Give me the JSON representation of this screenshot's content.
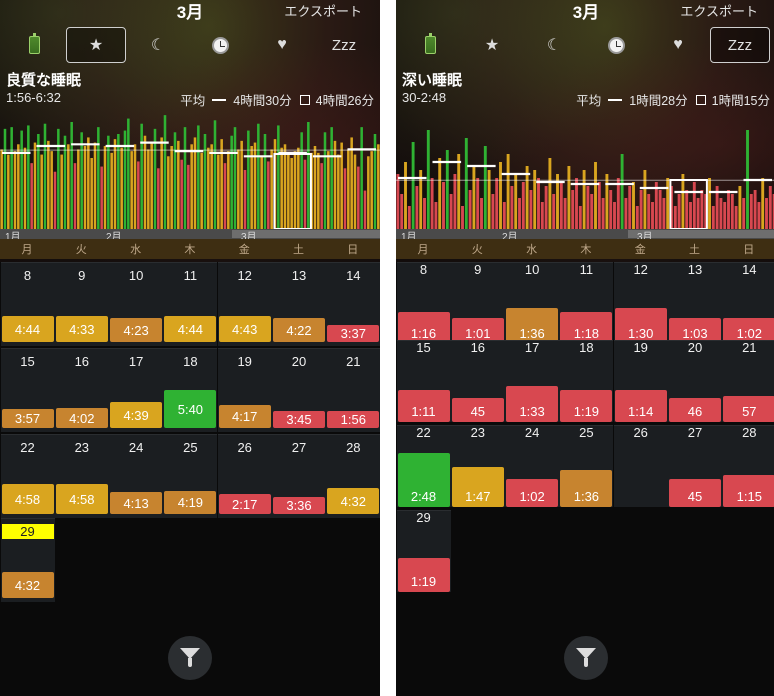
{
  "colors": {
    "green": "#2fb233",
    "yellow": "#d9a51f",
    "orange": "#c7842f",
    "red": "#d84850",
    "today": "#ffff00",
    "background": "#0a0a0a"
  },
  "panels": [
    {
      "id": "left",
      "header": {
        "month": "3月",
        "export_label": "エクスポート",
        "active_tab": 1
      },
      "tabs": [
        {
          "name": "battery",
          "glyph": ""
        },
        {
          "name": "star",
          "glyph": "★"
        },
        {
          "name": "moon",
          "glyph": "☾"
        },
        {
          "name": "clock",
          "glyph": ""
        },
        {
          "name": "heart",
          "glyph": "♥"
        },
        {
          "name": "zzz",
          "glyph": "Zzz"
        }
      ],
      "stats": {
        "title": "良質な睡眠",
        "range": "1:56-6:32",
        "avg_label": "平均",
        "avg_value": "4時間30分",
        "selected_value": "4時間26分"
      },
      "chart_data": {
        "type": "bar",
        "ylim": [
          0,
          7
        ],
        "values": [
          4.7,
          5.9,
          4.4,
          6.0,
          4.6,
          5.0,
          5.8,
          4.8,
          6.1,
          3.9,
          5.1,
          5.6,
          4.4,
          6.2,
          5.2,
          4.6,
          3.4,
          5.9,
          4.4,
          5.5,
          5.0,
          6.3,
          3.9,
          4.7,
          5.7,
          4.9,
          5.4,
          4.2,
          5.1,
          6.0,
          3.7,
          4.9,
          5.5,
          4.5,
          5.3,
          5.6,
          4.8,
          5.8,
          6.5,
          4.6,
          5.0,
          4.0,
          6.2,
          5.5,
          4.7,
          5.1,
          5.9,
          3.6,
          5.4,
          6.7,
          4.3,
          4.9,
          5.7,
          5.2,
          4.1,
          6.0,
          3.8,
          5.0,
          5.4,
          6.1,
          4.5,
          5.6,
          4.8,
          5.0,
          6.4,
          4.4,
          5.3,
          3.9,
          4.6,
          5.5,
          6.0,
          4.7,
          5.2,
          3.5,
          5.8,
          4.9,
          5.1,
          6.2,
          4.3,
          5.6,
          4.0,
          4.7,
          5.3,
          6.1,
          4.8,
          5.0,
          4.4,
          4.2,
          4.6,
          4.8,
          5.7,
          4.1,
          6.3,
          4.5,
          4.9,
          4.5,
          3.9,
          5.7,
          4.6,
          6.0,
          5.2,
          4.4,
          5.1,
          3.6,
          4.7,
          5.4,
          4.4,
          3.7,
          6.0,
          2.3,
          4.3,
          4.6,
          5.6,
          5.0
        ],
        "statuses": [
          "y",
          "g",
          "y",
          "g",
          "y",
          "y",
          "g",
          "y",
          "g",
          "r",
          "y",
          "g",
          "y",
          "g",
          "y",
          "y",
          "r",
          "g",
          "y",
          "g",
          "y",
          "g",
          "r",
          "y",
          "g",
          "y",
          "y",
          "y",
          "y",
          "g",
          "r",
          "y",
          "g",
          "y",
          "y",
          "g",
          "y",
          "g",
          "g",
          "y",
          "y",
          "r",
          "g",
          "y",
          "y",
          "y",
          "g",
          "r",
          "y",
          "g",
          "y",
          "y",
          "g",
          "y",
          "r",
          "g",
          "r",
          "y",
          "y",
          "g",
          "y",
          "g",
          "y",
          "y",
          "g",
          "y",
          "y",
          "r",
          "y",
          "g",
          "g",
          "y",
          "y",
          "r",
          "g",
          "y",
          "y",
          "g",
          "y",
          "g",
          "r",
          "y",
          "y",
          "g",
          "y",
          "y",
          "y",
          "y",
          "y",
          "y",
          "g",
          "r",
          "g",
          "y",
          "y",
          "y",
          "r",
          "g",
          "y",
          "g",
          "y",
          "y",
          "y",
          "r",
          "y",
          "y",
          "y",
          "r",
          "g",
          "r",
          "y",
          "y",
          "g",
          "y"
        ],
        "weekly_avg": [
          4.5,
          4.9,
          5.0,
          4.9,
          5.1,
          4.6,
          4.5,
          4.3,
          4.5,
          4.3,
          4.7
        ]
      },
      "timeline": {
        "labels": [
          "1月",
          "2月",
          "3月"
        ]
      },
      "weekdays": [
        "月",
        "火",
        "水",
        "木",
        "金",
        "土",
        "日"
      ],
      "weeks": [
        [
          {
            "date": "8",
            "v": "4:44",
            "c": "y",
            "h": 26
          },
          {
            "date": "9",
            "v": "4:33",
            "c": "y",
            "h": 26
          },
          {
            "date": "10",
            "v": "4:23",
            "c": "o",
            "h": 24
          },
          {
            "date": "11",
            "v": "4:44",
            "c": "y",
            "h": 26
          },
          {
            "date": "12",
            "v": "4:43",
            "c": "y",
            "h": 26
          },
          {
            "date": "13",
            "v": "4:22",
            "c": "o",
            "h": 24
          },
          {
            "date": "14",
            "v": "3:37",
            "c": "r",
            "h": 17
          }
        ],
        [
          {
            "date": "15",
            "v": "3:57",
            "c": "o",
            "h": 19
          },
          {
            "date": "16",
            "v": "4:02",
            "c": "o",
            "h": 20
          },
          {
            "date": "17",
            "v": "4:39",
            "c": "y",
            "h": 26
          },
          {
            "date": "18",
            "v": "5:40",
            "c": "g",
            "h": 38
          },
          {
            "date": "19",
            "v": "4:17",
            "c": "o",
            "h": 23
          },
          {
            "date": "20",
            "v": "3:45",
            "c": "r",
            "h": 17
          },
          {
            "date": "21",
            "v": "1:56",
            "c": "r",
            "h": 17
          }
        ],
        [
          {
            "date": "22",
            "v": "4:58",
            "c": "y",
            "h": 30
          },
          {
            "date": "23",
            "v": "4:58",
            "c": "y",
            "h": 30
          },
          {
            "date": "24",
            "v": "4:13",
            "c": "o",
            "h": 22
          },
          {
            "date": "25",
            "v": "4:19",
            "c": "o",
            "h": 23
          },
          {
            "date": "26",
            "v": "2:17",
            "c": "r",
            "h": 20
          },
          {
            "date": "27",
            "v": "3:36",
            "c": "r",
            "h": 17
          },
          {
            "date": "28",
            "v": "4:32",
            "c": "y",
            "h": 26
          }
        ],
        [
          {
            "date": "29",
            "v": "4:32",
            "c": "o",
            "h": 26,
            "today": true
          }
        ]
      ]
    },
    {
      "id": "right",
      "header": {
        "month": "3月",
        "export_label": "エクスポート",
        "active_tab": 5
      },
      "tabs": [
        {
          "name": "battery",
          "glyph": ""
        },
        {
          "name": "star",
          "glyph": "★"
        },
        {
          "name": "moon",
          "glyph": "☾"
        },
        {
          "name": "clock",
          "glyph": ""
        },
        {
          "name": "heart",
          "glyph": "♥"
        },
        {
          "name": "zzz",
          "glyph": "Zzz"
        }
      ],
      "stats": {
        "title": "深い睡眠",
        "range": "30-2:48",
        "avg_label": "平均",
        "avg_value": "1時間28分",
        "selected_value": "1時間15分"
      },
      "chart_data": {
        "type": "bar",
        "ylim": [
          0,
          3
        ],
        "values": [
          1.4,
          0.9,
          1.7,
          0.6,
          2.2,
          1.1,
          1.5,
          0.8,
          2.5,
          1.3,
          0.7,
          1.8,
          1.2,
          2.0,
          0.9,
          1.4,
          1.9,
          0.6,
          2.3,
          1.0,
          1.6,
          1.3,
          0.8,
          2.1,
          1.5,
          0.9,
          1.3,
          1.7,
          0.7,
          1.9,
          1.1,
          1.4,
          0.8,
          1.2,
          1.6,
          1.0,
          1.5,
          1.3,
          0.7,
          1.1,
          1.8,
          0.9,
          1.4,
          1.2,
          0.8,
          1.6,
          1.0,
          1.3,
          0.6,
          1.5,
          1.1,
          0.9,
          1.7,
          1.2,
          0.8,
          1.4,
          1.0,
          0.7,
          1.3,
          1.9,
          0.8,
          1.1,
          1.2,
          0.6,
          1.0,
          1.5,
          0.9,
          0.7,
          1.2,
          1.0,
          0.8,
          1.3,
          1.1,
          0.6,
          0.9,
          1.4,
          1.0,
          0.7,
          1.2,
          0.8,
          1.0,
          0.9,
          1.3,
          0.6,
          1.1,
          0.8,
          0.7,
          1.0,
          0.9,
          0.6,
          1.1,
          0.8,
          2.5,
          0.9,
          1.0,
          0.7,
          1.3,
          0.8,
          1.1,
          0.9
        ],
        "statuses": [
          "r",
          "r",
          "y",
          "r",
          "g",
          "r",
          "y",
          "r",
          "g",
          "r",
          "r",
          "y",
          "r",
          "g",
          "r",
          "r",
          "y",
          "r",
          "g",
          "r",
          "y",
          "r",
          "r",
          "g",
          "y",
          "r",
          "r",
          "y",
          "r",
          "y",
          "r",
          "y",
          "r",
          "r",
          "y",
          "r",
          "y",
          "r",
          "r",
          "r",
          "y",
          "r",
          "y",
          "r",
          "r",
          "y",
          "r",
          "r",
          "r",
          "y",
          "r",
          "r",
          "y",
          "r",
          "r",
          "y",
          "r",
          "r",
          "r",
          "g",
          "r",
          "r",
          "y",
          "r",
          "r",
          "y",
          "r",
          "r",
          "r",
          "r",
          "r",
          "y",
          "r",
          "r",
          "r",
          "y",
          "r",
          "r",
          "r",
          "r",
          "r",
          "r",
          "y",
          "r",
          "r",
          "r",
          "r",
          "r",
          "r",
          "r",
          "y",
          "r",
          "g",
          "r",
          "r",
          "r",
          "y",
          "r",
          "r",
          "r"
        ],
        "weekly_avg": [
          1.3,
          1.7,
          1.6,
          1.4,
          1.2,
          1.15,
          1.15,
          1.05,
          0.95,
          0.95,
          1.25
        ]
      },
      "timeline": {
        "labels": [
          "1月",
          "2月",
          "3月"
        ]
      },
      "weekdays": [
        "月",
        "火",
        "水",
        "木",
        "金",
        "土",
        "日"
      ],
      "weeks": [
        [
          {
            "date": "8",
            "v": "1:16",
            "c": "r",
            "h": 32
          },
          {
            "date": "9",
            "v": "1:01",
            "c": "r",
            "h": 26
          },
          {
            "date": "10",
            "v": "1:36",
            "c": "o",
            "h": 36
          },
          {
            "date": "11",
            "v": "1:18",
            "c": "r",
            "h": 32
          },
          {
            "date": "12",
            "v": "1:30",
            "c": "r",
            "h": 36
          },
          {
            "date": "13",
            "v": "1:03",
            "c": "r",
            "h": 26
          },
          {
            "date": "14",
            "v": "1:02",
            "c": "r",
            "h": 26
          }
        ],
        [
          {
            "date": "15",
            "v": "1:11",
            "c": "r",
            "h": 32
          },
          {
            "date": "16",
            "v": "45",
            "c": "r",
            "h": 24
          },
          {
            "date": "17",
            "v": "1:33",
            "c": "r",
            "h": 36
          },
          {
            "date": "18",
            "v": "1:19",
            "c": "r",
            "h": 32
          },
          {
            "date": "19",
            "v": "1:14",
            "c": "r",
            "h": 32
          },
          {
            "date": "20",
            "v": "46",
            "c": "r",
            "h": 24
          },
          {
            "date": "21",
            "v": "57",
            "c": "r",
            "h": 26
          }
        ],
        [
          {
            "date": "22",
            "v": "2:48",
            "c": "g",
            "h": 54
          },
          {
            "date": "23",
            "v": "1:47",
            "c": "y",
            "h": 40
          },
          {
            "date": "24",
            "v": "1:02",
            "c": "r",
            "h": 28
          },
          {
            "date": "25",
            "v": "1:36",
            "c": "o",
            "h": 37
          },
          {
            "date": "26",
            "v": "",
            "c": "none",
            "h": 0
          },
          {
            "date": "27",
            "v": "45",
            "c": "r",
            "h": 28
          },
          {
            "date": "28",
            "v": "1:15",
            "c": "r",
            "h": 32
          }
        ],
        [
          {
            "date": "29",
            "v": "1:19",
            "c": "r",
            "h": 34
          }
        ]
      ]
    }
  ]
}
